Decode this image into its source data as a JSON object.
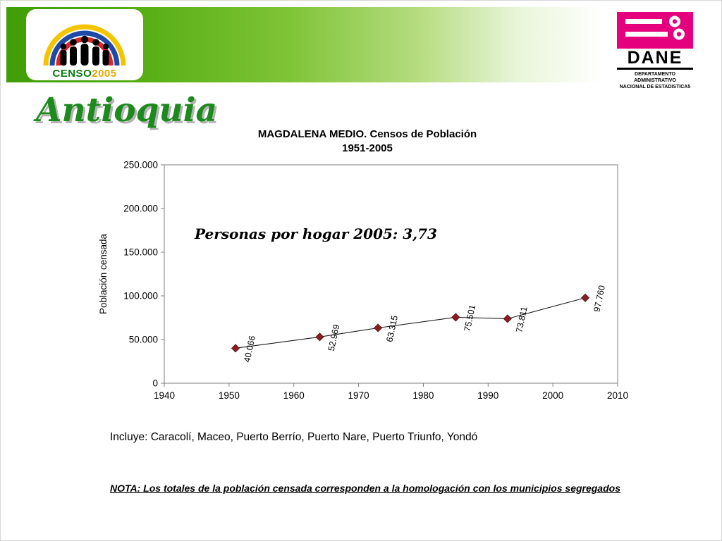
{
  "title": "Antioquia",
  "header": {
    "censo_logo": {
      "censo": "CENSO",
      "year": "2005"
    },
    "dane": {
      "name": "DANE",
      "dept_line1": "DEPARTAMENTO ADMINISTRATIVO",
      "dept_line2": "NACIONAL DE ESTADISTICA5"
    }
  },
  "chart_data": {
    "type": "line",
    "title": "MAGDALENA MEDIO. Censos de Población",
    "subtitle": "1951-2005",
    "xlabel": "",
    "ylabel": "Población censada",
    "x": [
      1951,
      1964,
      1973,
      1985,
      1993,
      2005
    ],
    "values": [
      40066,
      52969,
      63315,
      75501,
      73811,
      97760
    ],
    "point_labels": [
      "40.066",
      "52.969",
      "63.315",
      "75.501",
      "73.811",
      "97.760"
    ],
    "xlim": [
      1940,
      2010
    ],
    "xticks": [
      1940,
      1950,
      1960,
      1970,
      1980,
      1990,
      2000,
      2010
    ],
    "ylim": [
      0,
      250000
    ],
    "yticks": [
      0,
      50000,
      100000,
      150000,
      200000,
      250000
    ],
    "ytick_labels": [
      "0",
      "50.000",
      "100.000",
      "150.000",
      "200.000",
      "250.000"
    ],
    "annotation": "Personas por hogar 2005: 3,73",
    "grid": false,
    "legend": "none",
    "marker": "diamond",
    "marker_color": "#8B1C24",
    "line_color": "#1a1a1a"
  },
  "footer": {
    "includes": "Incluye: Caracolí, Maceo, Puerto Berrío, Puerto Nare, Puerto Triunfo, Yondó",
    "note": "NOTA: Los totales de la población censada corresponden a la homologación con los municipios segregados"
  },
  "colors": {
    "banner_green": "#4aa30a",
    "title_green": "#1d8a1d",
    "dane_magenta": "#E5007E",
    "marker_red": "#8B1C24",
    "arc_yellow": "#F2C500",
    "arc_blue": "#1F49A8",
    "arc_red": "#D7262C"
  }
}
